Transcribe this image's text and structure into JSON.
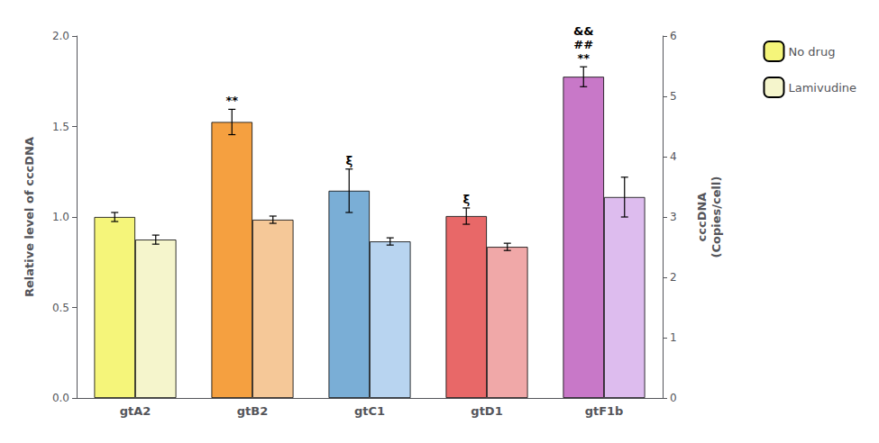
{
  "chart_data": {
    "type": "bar",
    "categories": [
      "gtA2",
      "gtB2",
      "gtC1",
      "gtD1",
      "gtF1b"
    ],
    "series": [
      {
        "name": "No drug",
        "color": "#f5f57a",
        "colors": [
          "#f5f57a",
          "#f5a040",
          "#7aaed6",
          "#e86868",
          "#c878c8"
        ],
        "values": [
          1.0,
          1.525,
          1.145,
          1.005,
          1.775
        ],
        "errors": [
          0.025,
          0.07,
          0.12,
          0.045,
          0.055
        ],
        "annotations": [
          null,
          [
            "**"
          ],
          [
            "ξ"
          ],
          [
            "ξ"
          ],
          [
            "**",
            "##",
            "&&"
          ]
        ]
      },
      {
        "name": "Lamivudine",
        "color": "#f5f5cc",
        "colors": [
          "#f5f5cc",
          "#f5c898",
          "#b8d4f0",
          "#f0a8a8",
          "#ddbcee"
        ],
        "values": [
          0.875,
          0.985,
          0.865,
          0.835,
          1.11
        ],
        "errors": [
          0.025,
          0.02,
          0.02,
          0.02,
          0.11
        ]
      }
    ],
    "ylabel": "Relative level of cccDNA",
    "y2label": "cccDNA\n(Copies/cell)",
    "ylim": [
      0.0,
      2.0
    ],
    "yticks": [
      {
        "value": 0.0,
        "label": "0.0"
      },
      {
        "value": 0.5,
        "label": "0.5"
      },
      {
        "value": 1.0,
        "label": "1.0"
      },
      {
        "value": 1.5,
        "label": "1.5"
      },
      {
        "value": 2.0,
        "label": "2.0"
      }
    ],
    "y2lim": [
      0,
      6
    ],
    "y2ticks": [
      0,
      1,
      2,
      3,
      4,
      5,
      6
    ],
    "grid": false,
    "legend": "upper right"
  }
}
